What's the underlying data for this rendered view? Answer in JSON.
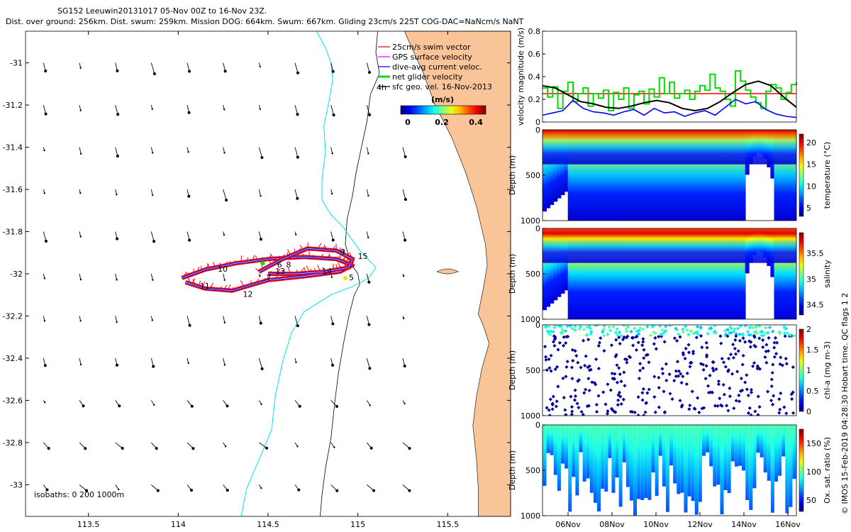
{
  "header": {
    "line1": "SG152 Leeuwin20131017 05-Nov 00Z to 16-Nov 23Z.",
    "line2": "Dist. over ground: 256km. Dist. swum: 259km. Mission DOG: 664km. Swum: 667km. Gliding 23cm/s 225T COG-DAC=NaNcm/s NaNT"
  },
  "side_note": "© IMOS 15-Feb-2019 04:28:30 Hobart time. QC flags 1  2",
  "chart_data": [
    {
      "type": "map",
      "name": "glider-track-map",
      "xlim": [
        113.15,
        115.85
      ],
      "ylim": [
        -33.15,
        -30.85
      ],
      "x_ticks": [
        113.5,
        114,
        114.5,
        115,
        115.5
      ],
      "x_tick_labels": [
        "113.5",
        "114",
        "114.5",
        "115",
        "115.5"
      ],
      "y_ticks": [
        -31,
        -31.2,
        -31.4,
        -31.6,
        -31.8,
        -32,
        -32.2,
        -32.4,
        -32.6,
        -32.8,
        -33
      ],
      "y_tick_labels": [
        "-31",
        "-31.2",
        "-31.4",
        "-31.6",
        "-31.8",
        "-32",
        "-32.2",
        "-32.4",
        "-32.6",
        "-32.8",
        "-33"
      ],
      "legend": [
        {
          "label": "25cm/s swim vector",
          "color": "#ff0000"
        },
        {
          "label": "GPS surface velocity",
          "color": "#ff00ff"
        },
        {
          "label": "dive-avg current veloc.",
          "color": "#0000ff"
        },
        {
          "label": "net glider velocity",
          "color": "#00dd00"
        },
        {
          "label": "sfc geo. vel. 16-Nov-2013",
          "color": "#000000"
        }
      ],
      "legend_extra": "4h",
      "colorbar": {
        "title": "(m/s)",
        "ticks": [
          0,
          0.2,
          0.4
        ],
        "tick_labels": [
          "0",
          "0.2",
          "0.4"
        ],
        "range": [
          0,
          0.5
        ]
      },
      "isobath_label": "isobaths: 0   200  1000m",
      "land_color": "#f9c598",
      "isobath_200_color": "#00e5ee",
      "track_loop_a": [
        [
          114.02,
          -32.02
        ],
        [
          114.15,
          -31.98
        ],
        [
          114.32,
          -31.95
        ],
        [
          114.5,
          -31.93
        ],
        [
          114.7,
          -31.92
        ],
        [
          114.88,
          -31.93
        ],
        [
          114.97,
          -31.96
        ],
        [
          114.9,
          -31.99
        ],
        [
          114.72,
          -32.01
        ],
        [
          114.5,
          -32.03
        ],
        [
          114.3,
          -32.08
        ],
        [
          114.15,
          -32.07
        ],
        [
          114.04,
          -32.04
        ]
      ],
      "track_loop_b": [
        [
          114.45,
          -31.99
        ],
        [
          114.58,
          -31.93
        ],
        [
          114.72,
          -31.88
        ],
        [
          114.88,
          -31.89
        ],
        [
          114.97,
          -31.93
        ],
        [
          114.95,
          -31.97
        ],
        [
          114.82,
          -31.99
        ],
        [
          114.65,
          -32.0
        ],
        [
          114.5,
          -32.0
        ]
      ],
      "day_labels": [
        {
          "text": "5",
          "lon": 114.95,
          "lat": -32.03
        },
        {
          "text": "6",
          "lon": 114.55,
          "lat": -31.97
        },
        {
          "text": "7",
          "lon": 114.49,
          "lat": -32.03
        },
        {
          "text": "8",
          "lon": 114.6,
          "lat": -31.97
        },
        {
          "text": "9",
          "lon": 114.9,
          "lat": -31.91
        },
        {
          "text": "10",
          "lon": 114.22,
          "lat": -31.99
        },
        {
          "text": "11",
          "lon": 114.12,
          "lat": -32.07
        },
        {
          "text": "12",
          "lon": 114.36,
          "lat": -32.11
        },
        {
          "text": "13",
          "lon": 114.54,
          "lat": -32.0
        },
        {
          "text": "14",
          "lon": 114.8,
          "lat": -32.0
        },
        {
          "text": "15",
          "lon": 115.0,
          "lat": -31.93
        }
      ]
    },
    {
      "type": "line",
      "name": "velocity-magnitude",
      "ylabel": "velocity magnitude (m/s)",
      "ylim": [
        0,
        0.8
      ],
      "y_ticks": [
        0,
        0.2,
        0.4,
        0.6,
        0.8
      ],
      "y_tick_labels": [
        "0",
        "0.2",
        "0.4",
        "0.6",
        "0.8"
      ],
      "x_domain": [
        0,
        100
      ],
      "series": [
        {
          "name": "swim",
          "color": "#ff0000",
          "x": [
            0,
            100
          ],
          "values": [
            0.25,
            0.25
          ]
        },
        {
          "name": "net glider velocity",
          "color": "#00dd00",
          "style": "bars",
          "x": [
            0,
            2,
            4,
            6,
            8,
            10,
            12,
            14,
            16,
            18,
            20,
            22,
            24,
            26,
            28,
            30,
            32,
            34,
            36,
            38,
            40,
            42,
            44,
            46,
            48,
            50,
            52,
            54,
            56,
            58,
            60,
            62,
            64,
            66,
            68,
            70,
            72,
            74,
            76,
            78,
            80,
            82,
            84,
            86,
            88,
            90,
            92,
            94,
            96,
            98,
            100
          ],
          "values": [
            0.3,
            0.22,
            0.31,
            0.12,
            0.27,
            0.35,
            0.18,
            0.25,
            0.3,
            0.14,
            0.25,
            0.21,
            0.28,
            0.1,
            0.26,
            0.2,
            0.3,
            0.12,
            0.24,
            0.27,
            0.16,
            0.29,
            0.22,
            0.39,
            0.25,
            0.35,
            0.21,
            0.25,
            0.28,
            0.2,
            0.27,
            0.32,
            0.28,
            0.42,
            0.3,
            0.27,
            0.2,
            0.14,
            0.45,
            0.36,
            0.28,
            0.22,
            0.17,
            0.12,
            0.27,
            0.33,
            0.3,
            0.2,
            0.26,
            0.33,
            0.35
          ]
        },
        {
          "name": "dive-avg current",
          "color": "#0000ff",
          "x": [
            0,
            4,
            8,
            12,
            16,
            20,
            24,
            28,
            32,
            36,
            40,
            44,
            48,
            52,
            56,
            60,
            64,
            68,
            72,
            76,
            80,
            84,
            88,
            92,
            96,
            100
          ],
          "values": [
            0.06,
            0.08,
            0.1,
            0.19,
            0.12,
            0.09,
            0.08,
            0.06,
            0.09,
            0.11,
            0.06,
            0.12,
            0.08,
            0.09,
            0.05,
            0.08,
            0.1,
            0.06,
            0.13,
            0.2,
            0.16,
            0.18,
            0.11,
            0.07,
            0.05,
            0.04
          ]
        },
        {
          "name": "sfc geo. vel.",
          "color": "#000000",
          "x": [
            0,
            5,
            10,
            15,
            20,
            25,
            30,
            35,
            40,
            45,
            50,
            55,
            60,
            65,
            70,
            75,
            80,
            85,
            90,
            95,
            100
          ],
          "values": [
            0.32,
            0.3,
            0.24,
            0.18,
            0.16,
            0.13,
            0.12,
            0.14,
            0.17,
            0.19,
            0.17,
            0.12,
            0.1,
            0.12,
            0.18,
            0.26,
            0.33,
            0.36,
            0.32,
            0.22,
            0.13
          ]
        }
      ]
    },
    {
      "type": "heatmap",
      "name": "temperature-section",
      "ylabel": "Depth (m)",
      "cbar_label": "temperature (°C)",
      "y_ticks": [
        0,
        500,
        1000
      ],
      "y_tick_labels": [
        "0",
        "500",
        "1000"
      ],
      "cbar_range": [
        3,
        22
      ],
      "cbar_ticks": [
        5,
        10,
        15,
        20
      ],
      "cbar_tick_labels": [
        "5",
        "10",
        "15",
        "20"
      ],
      "bands": [
        {
          "depth": 0,
          "value": 20.5
        },
        {
          "depth": 150,
          "value": 17.5
        },
        {
          "depth": 300,
          "value": 13
        },
        {
          "depth": 500,
          "value": 9
        },
        {
          "depth": 700,
          "value": 6
        },
        {
          "depth": 1000,
          "value": 4.5
        }
      ]
    },
    {
      "type": "heatmap",
      "name": "salinity-section",
      "ylabel": "Depth (m)",
      "cbar_label": "salinity",
      "y_ticks": [
        0,
        500,
        1000
      ],
      "y_tick_labels": [
        "0",
        "500",
        "1000"
      ],
      "cbar_range": [
        34.3,
        35.9
      ],
      "cbar_ticks": [
        34.5,
        35,
        35.5
      ],
      "cbar_tick_labels": [
        "34.5",
        "35",
        "35.5"
      ],
      "bands": [
        {
          "depth": 0,
          "value": 35.6
        },
        {
          "depth": 150,
          "value": 35.75
        },
        {
          "depth": 300,
          "value": 35.3
        },
        {
          "depth": 500,
          "value": 34.85
        },
        {
          "depth": 700,
          "value": 34.55
        },
        {
          "depth": 1000,
          "value": 34.45
        }
      ]
    },
    {
      "type": "scatter",
      "name": "chla-section",
      "ylabel": "Depth (m)",
      "cbar_label": "chl-a (mg m-3)",
      "y_ticks": [
        0,
        500,
        1000
      ],
      "y_tick_labels": [
        "0",
        "500",
        "1000"
      ],
      "cbar_range": [
        0,
        2
      ],
      "cbar_ticks": [
        0,
        0.5,
        1,
        1.5,
        2
      ],
      "cbar_tick_labels": [
        "0",
        "0.5",
        "1",
        "1.5",
        "2"
      ],
      "surface_value": 0.6,
      "deep_value": 0.05
    },
    {
      "type": "heatmap",
      "name": "oxygen-section",
      "ylabel": "Depth (m)",
      "cbar_label": "Ox. sat. ratio (%)",
      "y_ticks": [
        0,
        500,
        1000
      ],
      "y_tick_labels": [
        "0",
        "500",
        "1000"
      ],
      "cbar_range": [
        30,
        175
      ],
      "cbar_ticks": [
        50,
        100,
        150
      ],
      "cbar_tick_labels": [
        "50",
        "100",
        "150"
      ],
      "bands": [
        {
          "depth": 0,
          "value": 95
        },
        {
          "depth": 300,
          "value": 88
        },
        {
          "depth": 600,
          "value": 75
        },
        {
          "depth": 1000,
          "value": 60
        }
      ],
      "x_tick_labels": [
        "06Nov",
        "08Nov",
        "10Nov",
        "12Nov",
        "14Nov",
        "16Nov"
      ]
    }
  ]
}
